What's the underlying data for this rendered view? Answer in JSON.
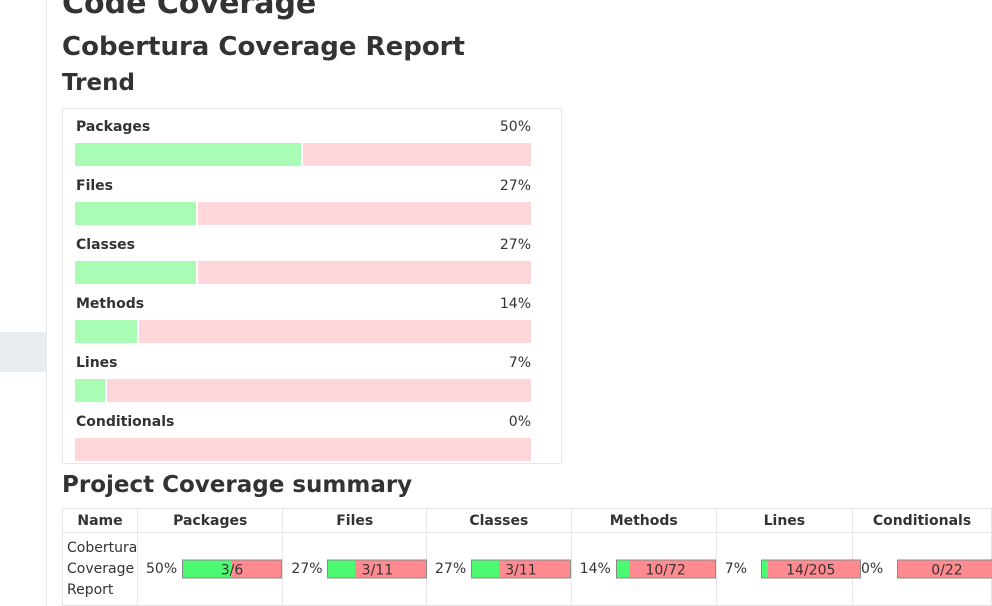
{
  "page": {
    "title": "Code Coverage",
    "report_title": "Cobertura Coverage Report",
    "trend_heading": "Trend",
    "summary_heading": "Project Coverage summary"
  },
  "trend": [
    {
      "label": "Packages",
      "percent_text": "50%",
      "percent": 50
    },
    {
      "label": "Files",
      "percent_text": "27%",
      "percent": 27
    },
    {
      "label": "Classes",
      "percent_text": "27%",
      "percent": 27
    },
    {
      "label": "Methods",
      "percent_text": "14%",
      "percent": 14
    },
    {
      "label": "Lines",
      "percent_text": "7%",
      "percent": 7
    },
    {
      "label": "Conditionals",
      "percent_text": "0%",
      "percent": 0
    }
  ],
  "summary": {
    "headers": [
      "Name",
      "Packages",
      "Files",
      "Classes",
      "Methods",
      "Lines",
      "Conditionals"
    ],
    "row": {
      "name": "Cobertura Coverage Report",
      "metrics": [
        {
          "percent_text": "50%",
          "count": "3/6",
          "fraction": 0.5
        },
        {
          "percent_text": "27%",
          "count": "3/11",
          "fraction": 0.273
        },
        {
          "percent_text": "27%",
          "count": "3/11",
          "fraction": 0.273
        },
        {
          "percent_text": "14%",
          "count": "10/72",
          "fraction": 0.139
        },
        {
          "percent_text": "7%",
          "count": "14/205",
          "fraction": 0.068
        },
        {
          "percent_text": "0%",
          "count": "0/22",
          "fraction": 0
        }
      ]
    }
  },
  "colors": {
    "trend_covered": "#a9fcb4",
    "trend_uncovered": "#ffd6da",
    "summary_covered": "#4bfa70",
    "summary_uncovered": "#ff8a8f"
  }
}
